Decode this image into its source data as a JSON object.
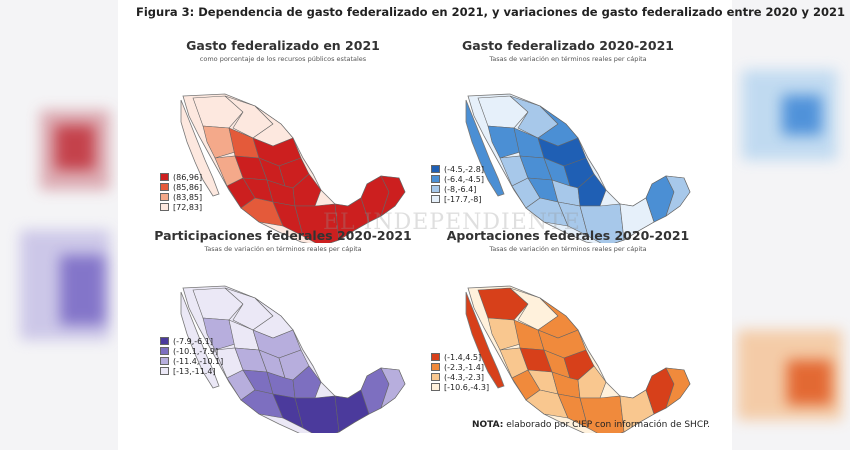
{
  "figure_title": "Figura 3: Dependencia de gasto federalizado en 2021, y variaciones de gasto federalizado entre 2020 y 2021",
  "watermark": "EL INDEPENDIENTE",
  "note": {
    "label": "NOTA:",
    "text": "elaborado por CIEP con información de SHCP."
  },
  "maps": [
    {
      "title": "Gasto federalizado en 2021",
      "subtitle": "como porcentaje de los recursos públicos estatales",
      "legend": [
        {
          "label": "(86,96]",
          "color": "#cc1f1f"
        },
        {
          "label": "(85,86]",
          "color": "#e45a3a"
        },
        {
          "label": "(83,85]",
          "color": "#f4a98a"
        },
        {
          "label": "[72,83]",
          "color": "#fde8df"
        }
      ]
    },
    {
      "title": "Gasto federalizado 2020-2021",
      "subtitle": "Tasas de variación en términos reales per cápita",
      "legend": [
        {
          "label": "(-4.5,-2.8]",
          "color": "#1f5fb4"
        },
        {
          "label": "(-6.4,-4.5]",
          "color": "#4b8fd4"
        },
        {
          "label": "(-8,-6.4]",
          "color": "#a7c8ea"
        },
        {
          "label": "[-17.7,-8]",
          "color": "#e6f0fa"
        }
      ]
    },
    {
      "title": "Participaciones federales 2020-2021",
      "subtitle": "Tasas de variación en términos reales per cápita",
      "legend": [
        {
          "label": "(-7.9,-6.1]",
          "color": "#4b3a9c"
        },
        {
          "label": "(-10.1,-7.9]",
          "color": "#7d6fc0"
        },
        {
          "label": "(-11.4,-10.1]",
          "color": "#b7aedd"
        },
        {
          "label": "[-13,-11.4]",
          "color": "#ebe8f6"
        }
      ]
    },
    {
      "title": "Aportaciones federales 2020-2021",
      "subtitle": "Tasas de variación en términos reales per cápita",
      "legend": [
        {
          "label": "(-1.4,4.5]",
          "color": "#d7401a"
        },
        {
          "label": "(-2.3,-1.4]",
          "color": "#f08a3c"
        },
        {
          "label": "(-4.3,-2.3]",
          "color": "#f9c78f"
        },
        {
          "label": "[-10.6,-4.3]",
          "color": "#fff1dc"
        }
      ]
    }
  ]
}
